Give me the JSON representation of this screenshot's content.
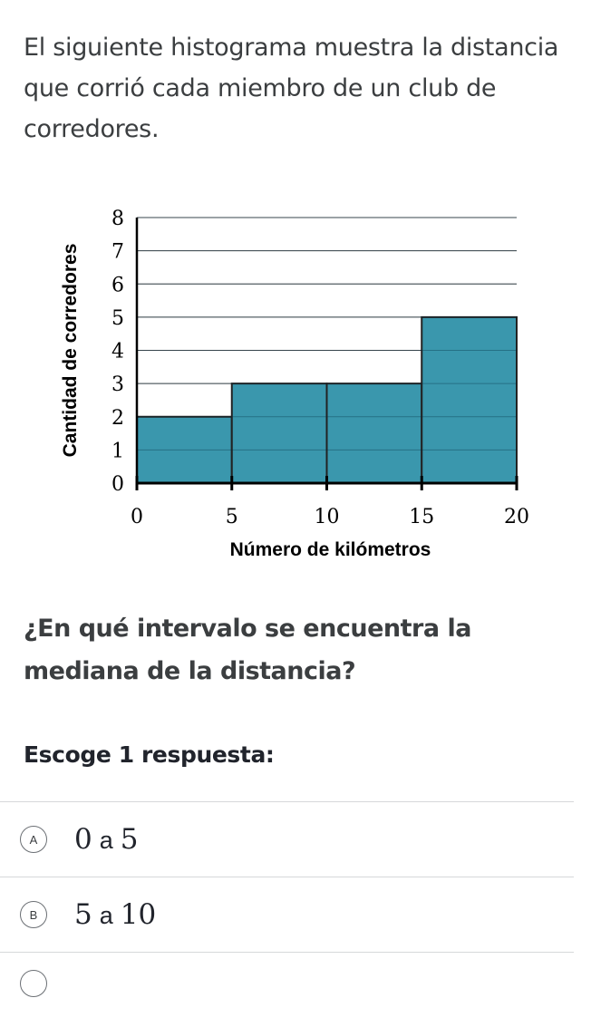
{
  "intro": "El siguiente histograma muestra la distancia que corrió cada miembro de un club de corredores.",
  "question": "¿En qué intervalo se encuentra la mediana de la distancia?",
  "prompt": "Escoge 1 respuesta:",
  "choices": [
    {
      "letter": "A",
      "from": "0",
      "sep": "a",
      "to": "5"
    },
    {
      "letter": "B",
      "from": "5",
      "sep": "a",
      "to": "10"
    }
  ],
  "chart_data": {
    "type": "bar",
    "histogram": true,
    "bins": [
      [
        0,
        5
      ],
      [
        5,
        10
      ],
      [
        10,
        15
      ],
      [
        15,
        20
      ]
    ],
    "values": [
      2,
      3,
      3,
      5
    ],
    "x_ticks": [
      "0",
      "5",
      "10",
      "15",
      "20"
    ],
    "y_ticks": [
      "0",
      "1",
      "2",
      "3",
      "4",
      "5",
      "6",
      "7",
      "8"
    ],
    "xlabel": "Número de kilómetros",
    "ylabel": "Cantidad de corredores",
    "xlim": [
      0,
      20
    ],
    "ylim": [
      0,
      8
    ],
    "grid": true,
    "bar_color": "#3a97ad"
  }
}
